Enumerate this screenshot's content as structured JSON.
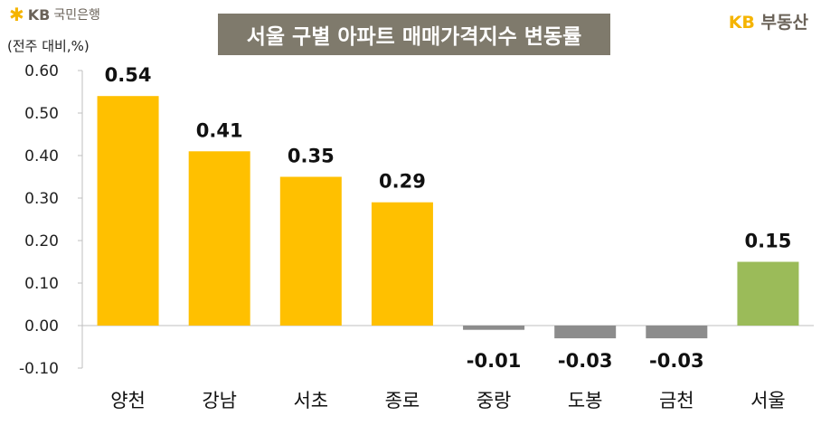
{
  "header": {
    "logo_text": "KB",
    "bank_name": "국민은행",
    "unit_label": "(전주 대비,%)",
    "title": "서울 구별 아파트 매매가격지수 변동률",
    "brand_kb": "KB",
    "brand_name": "부동산"
  },
  "colors": {
    "gold": "#ffc000",
    "gray": "#8c8c8c",
    "green": "#9bbb59",
    "title_bg": "#7f7a6c"
  },
  "chart_data": {
    "type": "bar",
    "title": "서울 구별 아파트 매매가격지수 변동률",
    "ylabel": "(전주 대비,%)",
    "ylim": [
      -0.1,
      0.6
    ],
    "yticks": [
      "0.60",
      "0.50",
      "0.40",
      "0.30",
      "0.20",
      "0.10",
      "0.00",
      "-0.10"
    ],
    "categories": [
      "양천",
      "강남",
      "서초",
      "종로",
      "중랑",
      "도봉",
      "금천",
      "서울"
    ],
    "values": [
      0.54,
      0.41,
      0.35,
      0.29,
      -0.01,
      -0.03,
      -0.03,
      0.15
    ],
    "value_labels": [
      "0.54",
      "0.41",
      "0.35",
      "0.29",
      "-0.01",
      "-0.03",
      "-0.03",
      "0.15"
    ],
    "bar_colors": [
      "gold",
      "gold",
      "gold",
      "gold",
      "gray",
      "gray",
      "gray",
      "green"
    ],
    "grid": false
  }
}
